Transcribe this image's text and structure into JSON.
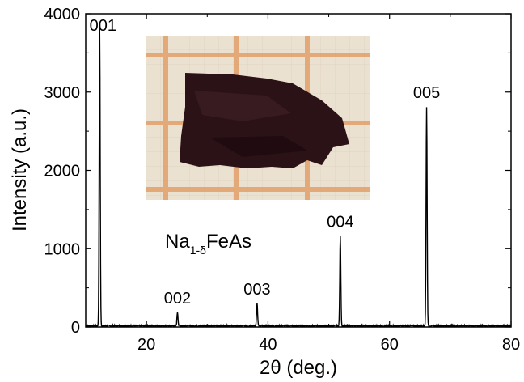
{
  "chart_data": {
    "type": "line",
    "xlabel_prefix": "2",
    "xlabel_theta": "θ",
    "xlabel_suffix": " (deg.)",
    "ylabel": "Intensity (a.u.)",
    "xlim": [
      10,
      80
    ],
    "ylim": [
      0,
      4000
    ],
    "x_ticks": [
      20,
      40,
      60,
      80
    ],
    "x_tick_labels": [
      "20",
      "40",
      "60",
      "80"
    ],
    "y_ticks": [
      0,
      1000,
      2000,
      3000,
      4000
    ],
    "y_tick_labels": [
      "0",
      "1000",
      "2000",
      "3000",
      "4000"
    ],
    "grid": false,
    "baseline": 15,
    "series": [
      {
        "peaks": [
          {
            "label": "001",
            "x": 12.3,
            "y": 3800
          },
          {
            "label": "002",
            "x": 25.1,
            "y": 175
          },
          {
            "label": "003",
            "x": 38.2,
            "y": 290
          },
          {
            "label": "004",
            "x": 51.9,
            "y": 1150
          },
          {
            "label": "005",
            "x": 66.1,
            "y": 2800
          }
        ]
      }
    ],
    "compound": {
      "prefix": "Na",
      "subscript": "1-δ",
      "suffix": "FeAs"
    },
    "inset": "photo of dark crystal on orange grid paper",
    "colors": {
      "line": "#000000",
      "paper": "#e8e4d8",
      "grid": "#e0a070",
      "crystal": "#2a1216"
    }
  }
}
